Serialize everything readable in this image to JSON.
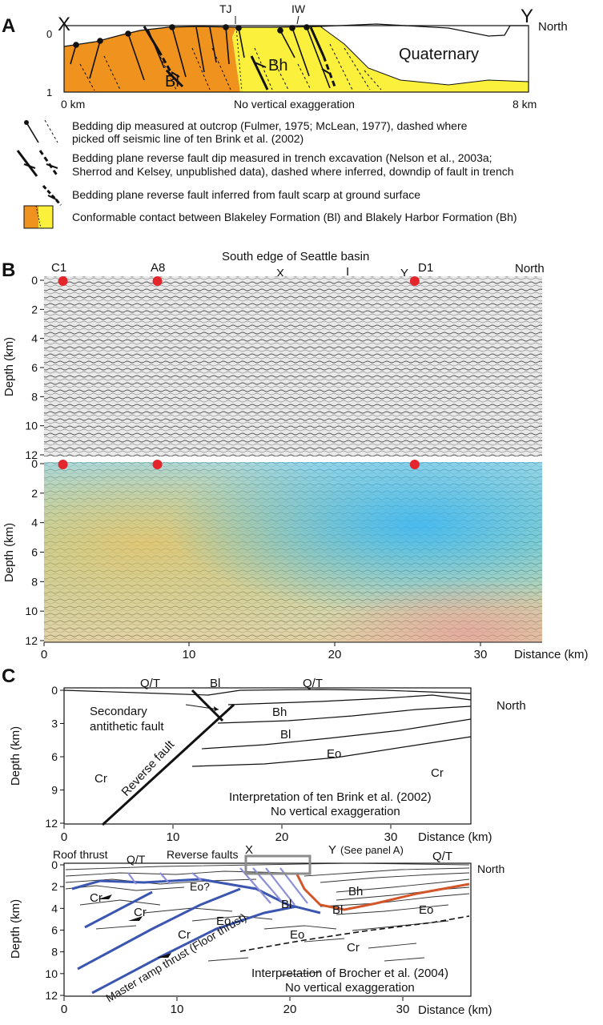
{
  "figure": {
    "panels": {
      "a": {
        "letter": "A",
        "x_label": "X",
        "y_label": "Y",
        "north": "North",
        "top_labels": [
          "TJ",
          "IW"
        ],
        "depth_ticks": [
          "0",
          "1"
        ],
        "dist_start": "0 km",
        "dist_end": "8 km",
        "note": "No vertical exaggeration",
        "unit_bl": "Bl",
        "unit_bh": "Bh",
        "unit_q": "Quaternary",
        "legend": [
          {
            "icon": "outcrop-dip-symbol-icon",
            "lines": [
              "Bedding dip measured at outcrop (Fulmer, 1975; McLean, 1977), dashed where",
              "picked off seismic line of ten Brink et al. (2002)"
            ]
          },
          {
            "icon": "trench-fault-symbol-icon",
            "lines": [
              "Bedding plane reverse fault dip measured in trench excavation (Nelson et al., 2003a;",
              "Sherrod and Kelsey, unpublished data), dashed where inferred, downdip of fault in trench"
            ]
          },
          {
            "icon": "scarp-fault-symbol-icon",
            "lines": [
              "Bedding plane reverse fault inferred from fault scarp at ground surface"
            ]
          },
          {
            "icon": "conformable-contact-swatch-icon",
            "lines": [
              "Conformable contact between Blakeley Formation (Bl) and Blakely Harbor Formation (Bh)"
            ]
          }
        ],
        "colors": {
          "blakeley": "#f0921e",
          "harbor": "#fbf03c"
        }
      },
      "b": {
        "letter": "B",
        "title": "South edge of Seattle basin",
        "north": "North",
        "wells": [
          "C1",
          "A8",
          "D1"
        ],
        "wells_km": [
          1.3,
          7.8,
          25.5
        ],
        "markers": [
          "X",
          "I",
          "Y"
        ],
        "ylabel": "Depth (km)",
        "depth_ticks": [
          "0",
          "2",
          "4",
          "6",
          "8",
          "10",
          "12"
        ],
        "x_ticks": [
          "0",
          "10",
          "20",
          "30"
        ],
        "xlabel": "Distance (km)",
        "well_color": "#e4262c"
      },
      "c": {
        "letter": "C",
        "north": "North",
        "top": {
          "ylabel": "Depth (km)",
          "depth_ticks": [
            "0",
            "3",
            "6",
            "9",
            "12"
          ],
          "x_ticks": [
            "0",
            "10",
            "20",
            "30"
          ],
          "xlabel": "Distance (km)",
          "labels": {
            "qt1": "Q/T",
            "bl_top": "Bl",
            "qt2": "Q/T",
            "bh": "Bh",
            "bl": "Bl",
            "eo": "Eo",
            "cr_left": "Cr",
            "cr_right": "Cr",
            "secondary": [
              "Secondary",
              "antithetic fault"
            ],
            "reverse": "Reverse fault"
          },
          "note": [
            "Interpretation of ten Brink et al. (2002)",
            "No vertical exaggeration"
          ]
        },
        "bottom": {
          "ylabel": "Depth (km)",
          "depth_ticks": [
            "0",
            "2",
            "4",
            "6",
            "8",
            "10",
            "12"
          ],
          "x_ticks": [
            "0",
            "10",
            "20",
            "30"
          ],
          "xlabel": "Distance (km)",
          "labels": {
            "roof": "Roof thrust",
            "qt1": "Q/T",
            "reverse": "Reverse faults",
            "x": "X",
            "y": "Y",
            "see": "(See panel A)",
            "qt2": "Q/T",
            "eo_q": "Eo?",
            "bh": "Bh",
            "bl": "Bl",
            "eo1": "Eo",
            "eo2": "Eo",
            "eo3": "Eo",
            "cr1": "Cr",
            "cr2": "Cr",
            "cr3": "Cr",
            "cr4": "Cr",
            "master": "Master ramp thrust (Floor thrust)"
          },
          "note": [
            "Interpretation of Brocher et al. (2004)",
            "No vertical exaggeration"
          ],
          "colors": {
            "thrust": "#3b56b0",
            "orange": "#d2562a",
            "box": "#8c8c8c"
          }
        }
      }
    }
  }
}
